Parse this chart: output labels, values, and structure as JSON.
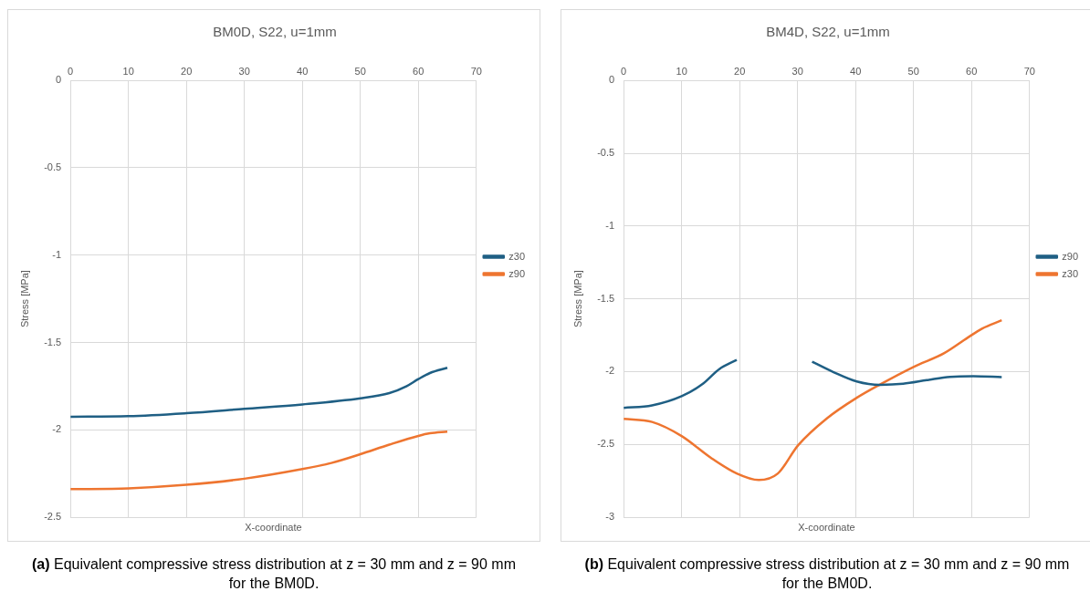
{
  "chart_data": [
    {
      "type": "line",
      "title": "BM0D, S22, u=1mm",
      "xlabel": "X-coordinate",
      "ylabel": "Stress [MPa]",
      "xlim": [
        0,
        70
      ],
      "xticks": [
        0,
        10,
        20,
        30,
        40,
        50,
        60,
        70
      ],
      "ylim": [
        -2.5,
        0
      ],
      "yticks": [
        -2.5,
        -2,
        -1.5,
        -1,
        -0.5,
        0
      ],
      "grid": true,
      "legend": "right",
      "marker": "none",
      "line_style": "solid",
      "series": [
        {
          "name": "z30",
          "color": "#1f5f84",
          "x": [
            0,
            10,
            20,
            30,
            40,
            50,
            55,
            58,
            60,
            62,
            65
          ],
          "values": [
            -1.925,
            -1.922,
            -1.905,
            -1.88,
            -1.855,
            -1.82,
            -1.79,
            -1.75,
            -1.71,
            -1.675,
            -1.645
          ]
        },
        {
          "name": "z90",
          "color": "#ee7530",
          "x": [
            0,
            10,
            20,
            30,
            40,
            45,
            50,
            55,
            60,
            62,
            65
          ],
          "values": [
            -2.34,
            -2.335,
            -2.315,
            -2.28,
            -2.225,
            -2.19,
            -2.14,
            -2.085,
            -2.035,
            -2.02,
            -2.01
          ]
        }
      ],
      "annotations": [
        "(a) Equivalent compressive stress distribution at z = 30 mm and z = 90 mm for the BM0D."
      ]
    },
    {
      "type": "line",
      "title": "BM4D, S22, u=1mm",
      "xlabel": "X-coordinate",
      "ylabel": "Stress [MPa]",
      "xlim": [
        0,
        70
      ],
      "xticks": [
        0,
        10,
        20,
        30,
        40,
        50,
        60,
        70
      ],
      "ylim": [
        -3,
        0
      ],
      "yticks": [
        -3,
        -2.5,
        -2,
        -1.5,
        -1,
        -0.5,
        0
      ],
      "grid": true,
      "legend": "right",
      "marker": "none",
      "line_style": "solid",
      "series": [
        {
          "name": "z90",
          "color": "#1f5f84",
          "x": [
            0,
            4.9,
            10,
            13.5,
            16.5,
            19.5,
            26,
            32.5,
            36.2,
            40.2,
            44.2,
            48.2,
            52.3,
            56.3,
            60.3,
            65.2
          ],
          "values": [
            -2.249,
            -2.232,
            -2.169,
            -2.089,
            -1.983,
            -1.92,
            null,
            -1.932,
            -2.004,
            -2.068,
            -2.091,
            -2.084,
            -2.059,
            -2.036,
            -2.032,
            -2.038
          ]
        },
        {
          "name": "z30",
          "color": "#ee7530",
          "x": [
            0,
            4.9,
            10,
            15,
            19.5,
            23.3,
            26.6,
            30.1,
            35.1,
            40.2,
            44.2,
            50,
            55.3,
            59.3,
            61.8,
            65.2
          ],
          "values": [
            -2.325,
            -2.346,
            -2.443,
            -2.591,
            -2.7,
            -2.745,
            -2.7,
            -2.506,
            -2.32,
            -2.18,
            -2.089,
            -1.968,
            -1.873,
            -1.768,
            -1.705,
            -1.648
          ]
        }
      ],
      "annotations": [
        "(b) Equivalent compressive stress distribution at z = 30 mm and z = 90 mm for the BM0D."
      ]
    }
  ]
}
